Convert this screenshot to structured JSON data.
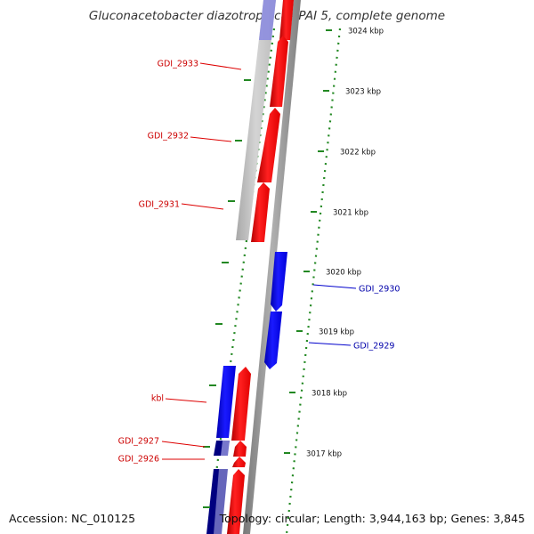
{
  "title": "Gluconacetobacter diazotrophicus PAI 5, complete genome",
  "footer": {
    "accession": "Accession: NC_010125",
    "summary": "Topology: circular; Length: 3,944,163 bp; Genes: 3,845"
  },
  "colors": {
    "forward_gene": "#ff0000",
    "reverse_gene": "#0000ff",
    "forward_label": "#cc0000",
    "reverse_label": "#0000aa",
    "tick": "#228822",
    "backbone": "#888888"
  },
  "scale_labels": [
    "3024 kbp",
    "3023 kbp",
    "3022 kbp",
    "3021 kbp",
    "3020 kbp",
    "3019 kbp",
    "3018 kbp",
    "3017 kbp"
  ],
  "genes": [
    {
      "label": "GDI_2933",
      "strand": "forward"
    },
    {
      "label": "GDI_2932",
      "strand": "forward"
    },
    {
      "label": "GDI_2931",
      "strand": "forward"
    },
    {
      "label": "GDI_2930",
      "strand": "reverse"
    },
    {
      "label": "GDI_2929",
      "strand": "reverse"
    },
    {
      "label": "kbl",
      "strand": "forward"
    },
    {
      "label": "GDI_2927",
      "strand": "forward"
    },
    {
      "label": "GDI_2926",
      "strand": "forward"
    }
  ]
}
